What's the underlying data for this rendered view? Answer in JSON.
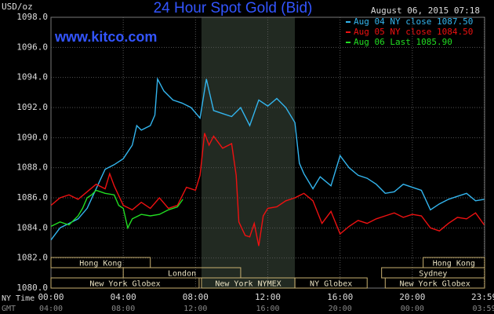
{
  "chart_data": {
    "type": "line",
    "title": "24 Hour Spot Gold (Bid)",
    "y_label": "USD/oz",
    "timestamp": "August 06, 2015 07:18",
    "watermark": "www.kitco.com",
    "x_row_label": "NY Time",
    "x2_row_label": "GMT",
    "xlim": [
      0,
      24
    ],
    "xticks": [
      {
        "value": 0,
        "label": "00:00"
      },
      {
        "value": 4,
        "label": "04:00"
      },
      {
        "value": 8,
        "label": "08:00"
      },
      {
        "value": 12,
        "label": "12:00"
      },
      {
        "value": 16,
        "label": "16:00"
      },
      {
        "value": 20,
        "label": "20:00"
      },
      {
        "value": 23.98,
        "label": "23:59"
      }
    ],
    "x2_labels": [
      "04:00",
      "08:00",
      "12:00",
      "16:00",
      "20:00",
      "00:00",
      "03:59"
    ],
    "ylim": [
      1080,
      1098
    ],
    "yticks": [
      {
        "value": 1080,
        "label": "1080.0"
      },
      {
        "value": 1082,
        "label": "1082.0"
      },
      {
        "value": 1084,
        "label": "1084.0"
      },
      {
        "value": 1086,
        "label": "1086.0"
      },
      {
        "value": 1088,
        "label": "1088.0"
      },
      {
        "value": 1090,
        "label": "1090.0"
      },
      {
        "value": 1092,
        "label": "1092.0"
      },
      {
        "value": 1094,
        "label": "1094.0"
      },
      {
        "value": 1096,
        "label": "1096.0"
      },
      {
        "value": 1098,
        "label": "1098.0"
      }
    ],
    "grid": true,
    "legend": "top-right",
    "session_rows": [
      [
        {
          "label": "Hong Kong",
          "start": 0,
          "end": 5.5
        },
        {
          "label": "Hong Kong",
          "start": 20.6,
          "end": 24
        }
      ],
      [
        {
          "label": "London",
          "start": 4,
          "end": 10.5
        },
        {
          "label": "Sydney",
          "start": 18.3,
          "end": 24
        }
      ],
      [
        {
          "label": "New York Globex",
          "start": 0,
          "end": 8.2
        },
        {
          "label": "New York NYMEX",
          "start": 8.33,
          "end": 13.5,
          "shaded": true
        },
        {
          "label": "NY Globex",
          "start": 13.5,
          "end": 17.5
        },
        {
          "label": "New York Globex",
          "start": 18.5,
          "end": 24
        }
      ]
    ],
    "series": [
      {
        "name": "Aug 04 NY close 1087.50",
        "color": "#33b5ee",
        "x": [
          0,
          0.5,
          1,
          1.5,
          2,
          2.5,
          3,
          3.5,
          4,
          4.5,
          4.75,
          5,
          5.5,
          5.75,
          5.9,
          6.25,
          6.75,
          7.25,
          7.75,
          8.25,
          8.6,
          9,
          9.5,
          10,
          10.5,
          11,
          11.5,
          12,
          12.5,
          13,
          13.5,
          13.75,
          14,
          14.5,
          14.9,
          15.5,
          16,
          16.5,
          17,
          17.5,
          18,
          18.5,
          19,
          19.5,
          20,
          20.5,
          21,
          21.5,
          22,
          22.5,
          23,
          23.5,
          23.98
        ],
        "values": [
          1083.2,
          1084.0,
          1084.3,
          1084.6,
          1085.3,
          1086.6,
          1087.9,
          1088.2,
          1088.6,
          1089.5,
          1090.8,
          1090.5,
          1090.8,
          1091.5,
          1093.9,
          1093.1,
          1092.5,
          1092.3,
          1092.0,
          1091.3,
          1093.9,
          1091.8,
          1091.6,
          1091.4,
          1092.0,
          1090.8,
          1092.5,
          1092.1,
          1092.6,
          1092.0,
          1091.0,
          1088.3,
          1087.6,
          1086.6,
          1087.4,
          1086.8,
          1088.8,
          1088.0,
          1087.5,
          1087.3,
          1086.9,
          1086.3,
          1086.4,
          1086.9,
          1086.7,
          1086.5,
          1085.2,
          1085.6,
          1085.9,
          1086.1,
          1086.3,
          1085.8,
          1085.9
        ]
      },
      {
        "name": "Aug 05 NY close 1084.50",
        "color": "#ee1111",
        "x": [
          0,
          0.5,
          1,
          1.5,
          2,
          2.5,
          3,
          3.25,
          3.5,
          4,
          4.5,
          5,
          5.5,
          6,
          6.5,
          7,
          7.5,
          8,
          8.25,
          8.5,
          8.75,
          9,
          9.5,
          10,
          10.25,
          10.4,
          10.75,
          11,
          11.25,
          11.5,
          11.75,
          12,
          12.5,
          13,
          13.5,
          14,
          14.5,
          15,
          15.5,
          16,
          16.5,
          17,
          17.5,
          18,
          18.5,
          19,
          19.5,
          20,
          20.5,
          21,
          21.5,
          22,
          22.5,
          23,
          23.5,
          23.98
        ],
        "values": [
          1085.5,
          1086.0,
          1086.2,
          1085.9,
          1086.4,
          1086.9,
          1086.6,
          1087.6,
          1086.8,
          1085.5,
          1085.2,
          1085.7,
          1085.3,
          1086.0,
          1085.3,
          1085.5,
          1086.7,
          1086.5,
          1087.5,
          1090.3,
          1089.5,
          1090.1,
          1089.3,
          1089.6,
          1087.5,
          1084.4,
          1083.5,
          1083.4,
          1084.3,
          1082.8,
          1084.8,
          1085.3,
          1085.4,
          1085.8,
          1086.0,
          1086.3,
          1085.8,
          1084.3,
          1085.1,
          1083.6,
          1084.1,
          1084.5,
          1084.3,
          1084.6,
          1084.8,
          1085.0,
          1084.7,
          1084.9,
          1084.8,
          1084.0,
          1083.8,
          1084.3,
          1084.7,
          1084.6,
          1085.0,
          1084.2
        ]
      },
      {
        "name": "Aug 06 Last 1085.90",
        "color": "#22dd22",
        "x": [
          0,
          0.5,
          1,
          1.5,
          1.75,
          2,
          2.25,
          2.5,
          3,
          3.5,
          3.75,
          4,
          4.25,
          4.5,
          5,
          5.5,
          6,
          6.5,
          7,
          7.3
        ],
        "values": [
          1084.1,
          1084.4,
          1084.2,
          1084.8,
          1085.3,
          1086.0,
          1086.2,
          1086.5,
          1086.3,
          1086.2,
          1085.5,
          1085.3,
          1084.0,
          1084.6,
          1084.9,
          1084.8,
          1084.9,
          1085.2,
          1085.4,
          1085.9
        ]
      }
    ]
  }
}
